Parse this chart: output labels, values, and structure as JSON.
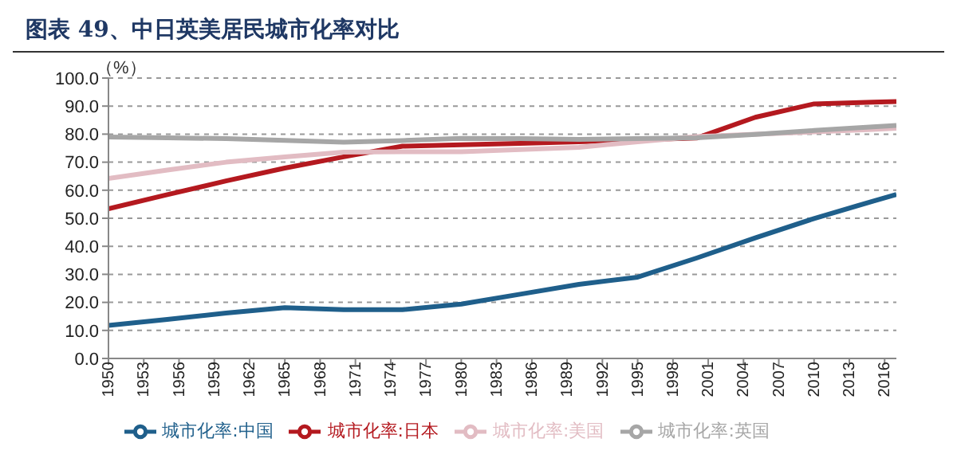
{
  "chart_data": {
    "type": "line",
    "title": "图表 49、中日英美居民城市化率对比",
    "ylabel": "（%）",
    "x": [
      1950,
      1955,
      1960,
      1965,
      1970,
      1975,
      1980,
      1985,
      1990,
      1995,
      2000,
      2005,
      2010,
      2015,
      2017
    ],
    "xlim": [
      1950,
      2017
    ],
    "xticks": [
      1950,
      1953,
      1956,
      1959,
      1962,
      1965,
      1968,
      1971,
      1974,
      1977,
      1980,
      1983,
      1986,
      1989,
      1992,
      1995,
      1998,
      2001,
      2004,
      2007,
      2010,
      2013,
      2016
    ],
    "ylim": [
      0,
      100
    ],
    "yticks": [
      {
        "value": 0,
        "label": "0.0"
      },
      {
        "value": 10,
        "label": "10.0"
      },
      {
        "value": 20,
        "label": "20.0"
      },
      {
        "value": 30,
        "label": "30.0"
      },
      {
        "value": 40,
        "label": "40.0"
      },
      {
        "value": 50,
        "label": "50.0"
      },
      {
        "value": 60,
        "label": "60.0"
      },
      {
        "value": 70,
        "label": "70.0"
      },
      {
        "value": 80,
        "label": "80.0"
      },
      {
        "value": 90,
        "label": "90.0"
      },
      {
        "value": 100,
        "label": "100.0"
      }
    ],
    "grid": "y",
    "legend": "bottom",
    "marker": "none",
    "line_style": "solid",
    "series": [
      {
        "name": "城市化率:中国",
        "color": "#1f5f8b",
        "values": [
          11.8,
          13.9,
          16.2,
          18.1,
          17.4,
          17.4,
          19.4,
          22.9,
          26.4,
          29.0,
          35.8,
          43,
          49.9,
          56.1,
          58.5
        ]
      },
      {
        "name": "城市化率:日本",
        "color": "#b4191f",
        "values": [
          53.4,
          58.4,
          63.3,
          67.9,
          71.9,
          75.7,
          76.2,
          76.7,
          77.3,
          null,
          78.6,
          86,
          90.8,
          91.4,
          91.6
        ]
      },
      {
        "name": "城市化率:美国",
        "color": "#e2bcc3",
        "values": [
          64.2,
          67.2,
          70,
          71.9,
          73.6,
          73.7,
          73.7,
          74.5,
          75.3,
          77.3,
          79.1,
          80,
          80.8,
          81.7,
          82.1
        ]
      },
      {
        "name": "城市化率:英国",
        "color": "#a6a6a6",
        "values": [
          79,
          78.7,
          78.4,
          77.8,
          77.1,
          77.7,
          78.5,
          78.4,
          78.1,
          78.4,
          78.7,
          79.9,
          81.3,
          82.6,
          83.1
        ]
      }
    ]
  }
}
